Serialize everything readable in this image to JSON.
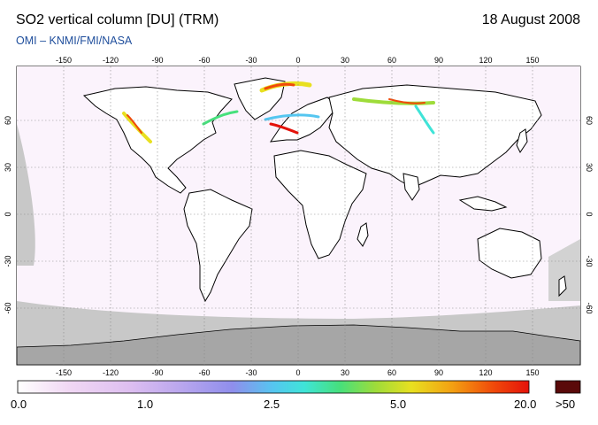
{
  "header": {
    "title": "SO2 vertical column [DU] (TRM)",
    "date": "18 August 2008",
    "credit": "OMI  –  KNMI/FMI/NASA"
  },
  "map": {
    "lon_ticks": [
      "-150",
      "-120",
      "-90",
      "-60",
      "-30",
      "0",
      "30",
      "60",
      "90",
      "120",
      "150"
    ],
    "lat_ticks": [
      "60",
      "30",
      "0",
      "-30",
      "-60"
    ],
    "colors": {
      "land_outline": "#000000",
      "grid": "#888888",
      "no_data": "#c8c8c8",
      "antarctica": "#a6a6a6"
    }
  },
  "colorbar": {
    "labels": [
      "0.0",
      "1.0",
      "2.5",
      "5.0",
      "20.0"
    ],
    "max_label": ">50",
    "colors": [
      "#ffffff",
      "#f1d8f4",
      "#ddbef0",
      "#b9a6ee",
      "#8f8eec",
      "#55c6f0",
      "#3fe4d8",
      "#46e07c",
      "#9edc3a",
      "#e8e020",
      "#f3a012",
      "#f04a0a",
      "#e4120a"
    ],
    "max_color": "#5a0a0a"
  }
}
